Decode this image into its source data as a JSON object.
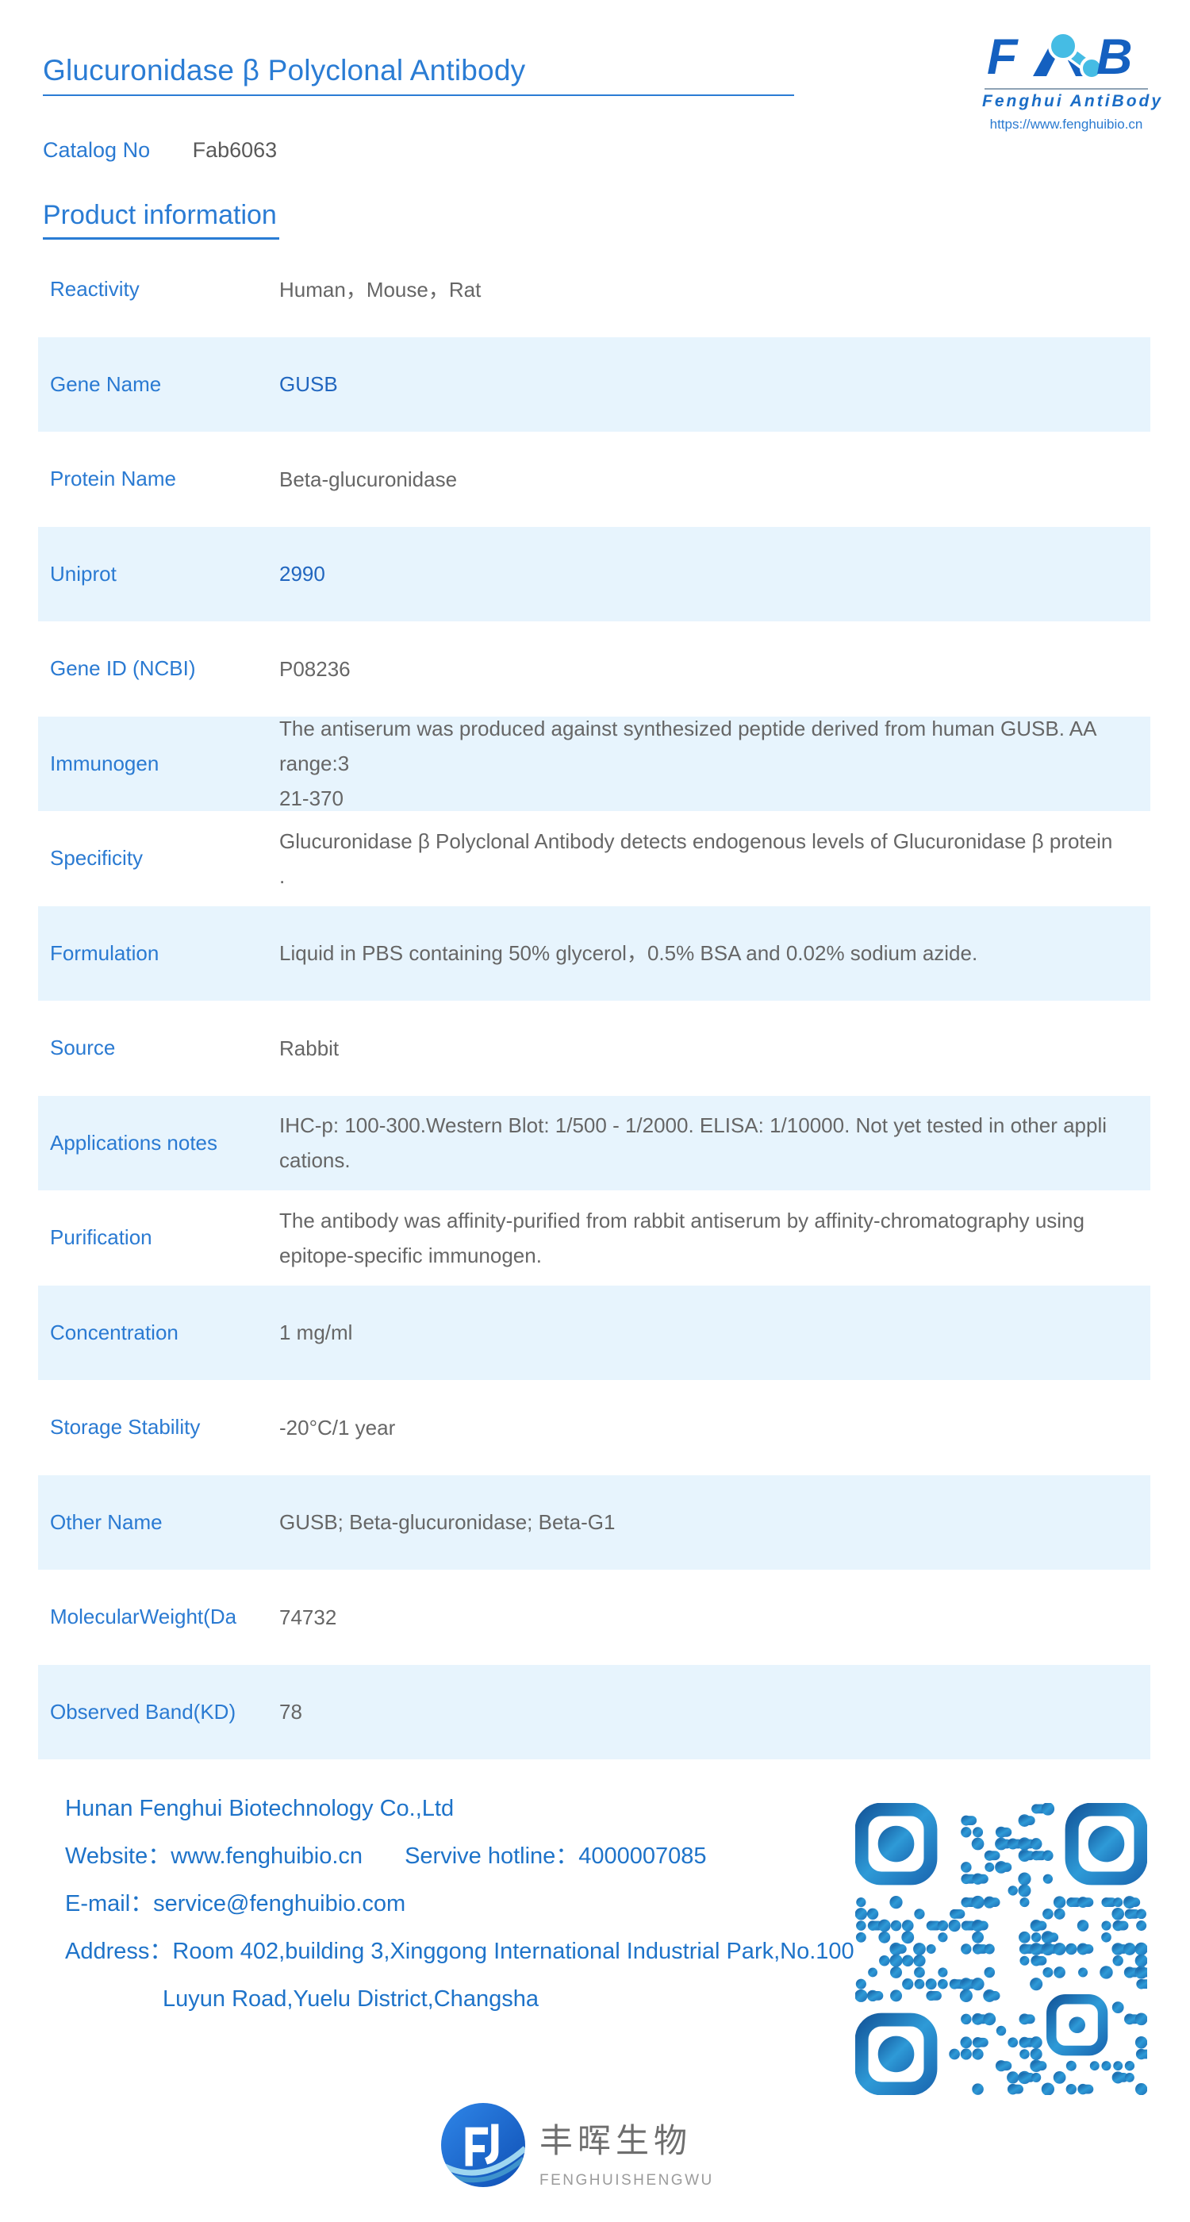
{
  "page": {
    "title": "Glucuronidase β Polyclonal Antibody",
    "section_heading": "Product information"
  },
  "catalog": {
    "label": "Catalog No",
    "value": "Fab6063"
  },
  "logo": {
    "brand_f": "F",
    "brand_b": "B",
    "subtitle": "Fenghui AntiBody",
    "url": "https://www.fenghuibio.cn"
  },
  "table": {
    "rows": [
      {
        "label": "Reactivity",
        "value": "Human，Mouse，Rat",
        "link": false
      },
      {
        "label": "Gene Name",
        "value": "GUSB",
        "link": true
      },
      {
        "label": "Protein Name",
        "value": "Beta-glucuronidase",
        "link": false
      },
      {
        "label": "Uniprot",
        "value": "2990",
        "link": true
      },
      {
        "label": "Gene ID (NCBI)",
        "value": "P08236",
        "link": false
      },
      {
        "label": "Immunogen",
        "value": "The antiserum was produced against synthesized peptide derived from human GUSB. AA range:3\n21-370",
        "link": false
      },
      {
        "label": "Specificity",
        "value": "Glucuronidase β Polyclonal Antibody detects endogenous levels of Glucuronidase β protein\n.",
        "link": false
      },
      {
        "label": "Formulation",
        "value": "Liquid in PBS containing 50% glycerol，0.5% BSA and 0.02% sodium azide.",
        "link": false
      },
      {
        "label": "Source",
        "value": "Rabbit",
        "link": false
      },
      {
        "label": "Applications notes",
        "value": "IHC-p: 100-300.Western Blot: 1/500 - 1/2000. ELISA: 1/10000. Not yet tested in other appli\ncations.",
        "link": false
      },
      {
        "label": "Purification",
        "value": "The antibody was affinity-purified from rabbit antiserum by affinity-chromatography using\nepitope-specific immunogen.",
        "link": false
      },
      {
        "label": "Concentration",
        "value": "1 mg/ml",
        "link": false
      },
      {
        "label": "Storage Stability",
        "value": "-20°C/1 year",
        "link": false
      },
      {
        "label": "Other Name",
        "value": "GUSB; Beta-glucuronidase; Beta-G1",
        "link": false
      },
      {
        "label": "MolecularWeight(Da",
        "value": "74732",
        "link": false
      },
      {
        "label": "Observed Band(KD)",
        "value": "78",
        "link": false
      }
    ]
  },
  "footer": {
    "company": "Hunan Fenghui Biotechnology Co.,Ltd",
    "website": "Website：www.fenghuibio.cn",
    "hotline": "Servive hotline：4000007085",
    "email": "E-mail：service@fenghuibio.com",
    "address_line1": "Address：Room 402,building 3,Xinggong International Industrial Park,No.100",
    "address_line2": "Luyun Road,Yuelu District,Changsha"
  },
  "bottom_logo": {
    "cn": "丰晖生物",
    "en": "FENGHUISHENGWU"
  },
  "colors": {
    "accent_blue": "#2a7cd4",
    "label_blue": "#2a7ad2",
    "link_blue": "#2166bf",
    "value_gray": "#666666",
    "band_light_blue": "#e7f4fd",
    "footer_blue": "#1e73c9",
    "logo_blue": "#1460c0",
    "logo_light_blue": "#45bce4",
    "qr_blue": "#1d68b5"
  }
}
